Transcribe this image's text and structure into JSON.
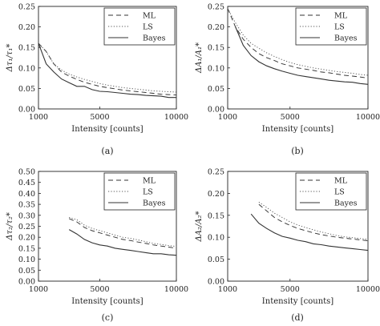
{
  "chart_data": [
    {
      "type": "line",
      "panel_label": "(a)",
      "xlabel": "Intensity [counts]",
      "ylabel": "Δτ₁/τ₁*",
      "xlim": [
        1000,
        10000
      ],
      "ylim": [
        0,
        0.25
      ],
      "xticks": [
        1000,
        5000,
        10000
      ],
      "yticks": [
        0,
        0.05,
        0.1,
        0.15,
        0.2,
        0.25
      ],
      "ytick_labels": [
        "0.00",
        "0.05",
        "0.10",
        "0.15",
        "0.20",
        "0.25"
      ],
      "legend_position": "top-right",
      "x": [
        1000,
        1500,
        2000,
        2500,
        3000,
        3500,
        4000,
        4500,
        5000,
        5500,
        6000,
        6500,
        7000,
        7500,
        8000,
        8500,
        9000,
        9500,
        10000
      ],
      "series": [
        {
          "name": "ML",
          "style": "dashed",
          "values": [
            0.16,
            0.14,
            0.11,
            0.09,
            0.08,
            0.072,
            0.065,
            0.06,
            0.055,
            0.052,
            0.049,
            0.046,
            0.044,
            0.042,
            0.04,
            0.038,
            0.036,
            0.035,
            0.034
          ]
        },
        {
          "name": "LS",
          "style": "dotted",
          "values": [
            0.16,
            0.14,
            0.11,
            0.095,
            0.085,
            0.078,
            0.072,
            0.067,
            0.062,
            0.058,
            0.055,
            0.052,
            0.05,
            0.048,
            0.046,
            0.044,
            0.043,
            0.042,
            0.041
          ]
        },
        {
          "name": "Bayes",
          "style": "solid",
          "values": [
            0.16,
            0.11,
            0.09,
            0.073,
            0.064,
            0.055,
            0.055,
            0.047,
            0.043,
            0.042,
            0.04,
            0.038,
            0.036,
            0.035,
            0.033,
            0.032,
            0.031,
            0.028,
            0.028
          ]
        }
      ]
    },
    {
      "type": "line",
      "panel_label": "(b)",
      "xlabel": "Intensity [counts]",
      "ylabel": "ΔA₁/A₁*",
      "xlim": [
        1000,
        10000
      ],
      "ylim": [
        0,
        0.25
      ],
      "xticks": [
        1000,
        5000,
        10000
      ],
      "yticks": [
        0,
        0.05,
        0.1,
        0.15,
        0.2,
        0.25
      ],
      "ytick_labels": [
        "0.00",
        "0.05",
        "0.10",
        "0.15",
        "0.20",
        "0.25"
      ],
      "legend_position": "top-right",
      "x": [
        1000,
        1500,
        2000,
        2500,
        3000,
        3500,
        4000,
        4500,
        5000,
        5500,
        6000,
        6500,
        7000,
        7500,
        8000,
        8500,
        9000,
        9500,
        10000
      ],
      "series": [
        {
          "name": "ML",
          "style": "dashed",
          "values": [
            0.245,
            0.2,
            0.17,
            0.15,
            0.135,
            0.125,
            0.118,
            0.11,
            0.105,
            0.1,
            0.097,
            0.094,
            0.09,
            0.088,
            0.085,
            0.082,
            0.08,
            0.078,
            0.075
          ]
        },
        {
          "name": "LS",
          "style": "dotted",
          "values": [
            0.245,
            0.21,
            0.18,
            0.16,
            0.148,
            0.137,
            0.128,
            0.12,
            0.113,
            0.108,
            0.104,
            0.1,
            0.097,
            0.094,
            0.091,
            0.089,
            0.087,
            0.084,
            0.082
          ]
        },
        {
          "name": "Bayes",
          "style": "solid",
          "values": [
            null,
            0.2,
            0.155,
            0.13,
            0.115,
            0.105,
            0.098,
            0.092,
            0.087,
            0.082,
            0.079,
            0.076,
            0.073,
            0.07,
            0.068,
            0.066,
            0.065,
            0.062,
            0.06
          ]
        }
      ]
    },
    {
      "type": "line",
      "panel_label": "(c)",
      "xlabel": "Intensity [counts]",
      "ylabel": "Δτ₂/τ₂*",
      "xlim": [
        1000,
        10000
      ],
      "ylim": [
        0,
        0.5
      ],
      "xticks": [
        1000,
        5000,
        10000
      ],
      "yticks": [
        0,
        0.05,
        0.1,
        0.15,
        0.2,
        0.25,
        0.3,
        0.35,
        0.4,
        0.45,
        0.5
      ],
      "ytick_labels": [
        "0.00",
        "0.05",
        "0.10",
        "0.15",
        "0.20",
        "0.25",
        "0.30",
        "0.35",
        "0.40",
        "0.45",
        "0.50"
      ],
      "legend_position": "top-right",
      "x": [
        3000,
        3500,
        4000,
        4500,
        5000,
        5500,
        6000,
        6500,
        7000,
        7500,
        8000,
        8500,
        9000,
        9500,
        10000
      ],
      "series": [
        {
          "name": "ML",
          "style": "dashed",
          "values": [
            0.285,
            0.27,
            0.245,
            0.23,
            0.22,
            0.21,
            0.2,
            0.19,
            0.185,
            0.178,
            0.172,
            0.165,
            0.16,
            0.155,
            0.15
          ]
        },
        {
          "name": "LS",
          "style": "dotted",
          "values": [
            0.29,
            0.28,
            0.255,
            0.24,
            0.23,
            0.22,
            0.21,
            0.2,
            0.195,
            0.188,
            0.18,
            0.172,
            0.167,
            0.162,
            0.158
          ]
        },
        {
          "name": "Bayes",
          "style": "solid",
          "values": [
            0.235,
            0.215,
            0.19,
            0.175,
            0.165,
            0.16,
            0.15,
            0.145,
            0.14,
            0.135,
            0.13,
            0.125,
            0.125,
            0.12,
            0.118
          ]
        }
      ]
    },
    {
      "type": "line",
      "panel_label": "(d)",
      "xlabel": "Intensity [counts]",
      "ylabel": "ΔA₂/A₂*",
      "xlim": [
        1000,
        10000
      ],
      "ylim": [
        0,
        0.25
      ],
      "xticks": [
        1000,
        5000,
        10000
      ],
      "yticks": [
        0,
        0.05,
        0.1,
        0.15,
        0.2,
        0.25
      ],
      "ytick_labels": [
        "0.00",
        "0.05",
        "0.10",
        "0.15",
        "0.20",
        "0.25"
      ],
      "legend_position": "top-right",
      "x": [
        2500,
        3000,
        3500,
        4000,
        4500,
        5000,
        5500,
        6000,
        6500,
        7000,
        7500,
        8000,
        8500,
        9000,
        9500,
        10000
      ],
      "series": [
        {
          "name": "ML",
          "style": "dashed",
          "values": [
            null,
            0.175,
            0.16,
            0.145,
            0.135,
            0.127,
            0.12,
            0.115,
            0.11,
            0.106,
            0.103,
            0.1,
            0.098,
            0.096,
            0.094,
            0.092
          ]
        },
        {
          "name": "LS",
          "style": "dotted",
          "values": [
            null,
            0.18,
            0.168,
            0.155,
            0.145,
            0.135,
            0.128,
            0.122,
            0.117,
            0.112,
            0.108,
            0.104,
            0.101,
            0.099,
            0.097,
            0.095
          ]
        },
        {
          "name": "Bayes",
          "style": "solid",
          "values": [
            0.153,
            0.132,
            0.12,
            0.11,
            0.102,
            0.098,
            0.093,
            0.09,
            0.085,
            0.083,
            0.08,
            0.078,
            0.076,
            0.074,
            0.072,
            0.07
          ]
        }
      ]
    }
  ]
}
